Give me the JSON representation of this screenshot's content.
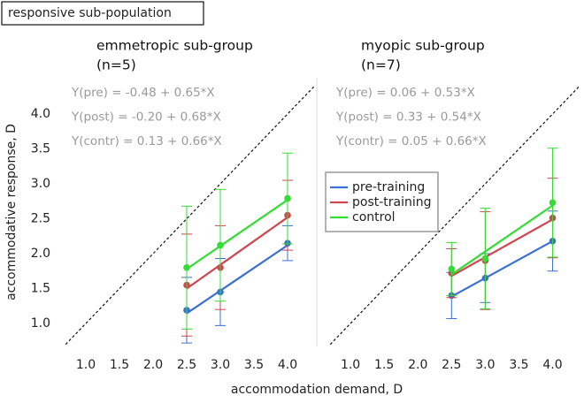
{
  "header": "responsive sub-population",
  "x_label": "accommodation demand, D",
  "y_label": "accommodative response, D",
  "chart_data": [
    {
      "type": "line",
      "title": "emmetropic sub-group",
      "subtitle": "(n=5)",
      "xlim": [
        0.5,
        4.4
      ],
      "ylim": [
        0.7,
        4.5
      ],
      "xticks": [
        {
          "value": 1,
          "label": "1.0"
        },
        1.5,
        {
          "value": 2,
          "label": "2.0"
        },
        2.5,
        {
          "value": 3,
          "label": "3.0"
        },
        3.5,
        {
          "value": 4,
          "label": "4.0"
        }
      ],
      "yticks": [
        {
          "value": 1,
          "label": "1.0"
        },
        1.5,
        {
          "value": 2,
          "label": "2.0"
        },
        2.5,
        {
          "value": 3,
          "label": "3.0"
        },
        3.5,
        {
          "value": 4,
          "label": "4.0"
        }
      ],
      "identity_line": true,
      "annotations": [
        "Y(pre) = -0.48 + 0.65*X",
        "Y(post) = -0.20 + 0.68*X",
        "Y(contr) = 0.13 + 0.66*X"
      ],
      "x": [
        2.5,
        3.0,
        4.0
      ],
      "series": [
        {
          "color": "#3b6fd4",
          "values": [
            1.19,
            1.45,
            2.15
          ],
          "errors": [
            0.47,
            0.48,
            0.25
          ],
          "fit": {
            "intercept": -0.48,
            "slope": 0.65
          }
        },
        {
          "color": "#d0454f",
          "values": [
            1.55,
            1.8,
            2.55
          ],
          "errors": [
            0.73,
            0.6,
            0.5
          ],
          "fit": {
            "intercept": -0.2,
            "slope": 0.68
          }
        },
        {
          "color": "#33dd33",
          "values": [
            1.8,
            2.12,
            2.79
          ],
          "errors": [
            0.88,
            0.8,
            0.65
          ],
          "fit": {
            "intercept": 0.13,
            "slope": 0.66
          }
        }
      ]
    },
    {
      "type": "line",
      "title": "myopic sub-group",
      "subtitle": "(n=7)",
      "xlim": [
        0.5,
        4.4
      ],
      "ylim": [
        0.7,
        4.5
      ],
      "xticks": [
        {
          "value": 1,
          "label": "1.0"
        },
        1.5,
        {
          "value": 2,
          "label": "2.0"
        },
        2.5,
        {
          "value": 3,
          "label": "3.0"
        },
        3.5,
        {
          "value": 4,
          "label": "4.0"
        }
      ],
      "identity_line": true,
      "legend": "center-left",
      "annotations": [
        "Y(pre) = 0.06 + 0.53*X",
        "Y(post) = 0.33 + 0.54*X",
        "Y(contr) = 0.05 + 0.66*X"
      ],
      "x": [
        2.5,
        3.0,
        4.0
      ],
      "series": [
        {
          "name": "pre-training",
          "color": "#3b6fd4",
          "values": [
            1.4,
            1.65,
            2.18
          ],
          "errors": [
            0.33,
            0.35,
            0.43
          ],
          "fit": {
            "intercept": 0.06,
            "slope": 0.53
          }
        },
        {
          "name": "post-training",
          "color": "#d0454f",
          "values": [
            1.72,
            1.9,
            2.51
          ],
          "errors": [
            0.35,
            0.7,
            0.57
          ],
          "fit": {
            "intercept": 0.33,
            "slope": 0.54
          }
        },
        {
          "name": "control",
          "color": "#33dd33",
          "values": [
            1.78,
            1.93,
            2.73
          ],
          "errors": [
            0.38,
            0.72,
            0.78
          ],
          "fit": {
            "intercept": 0.05,
            "slope": 0.66
          }
        }
      ]
    }
  ]
}
